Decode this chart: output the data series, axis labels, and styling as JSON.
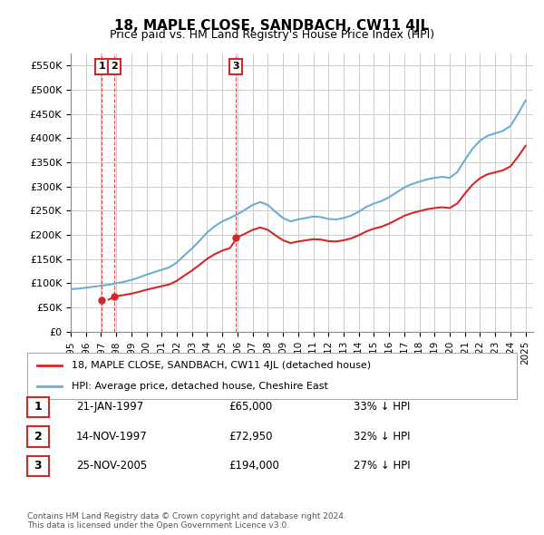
{
  "title": "18, MAPLE CLOSE, SANDBACH, CW11 4JL",
  "subtitle": "Price paid vs. HM Land Registry's House Price Index (HPI)",
  "hpi_color": "#6baed6",
  "price_color": "#d62728",
  "xlim": [
    1995,
    2025.5
  ],
  "ylim": [
    0,
    575000
  ],
  "yticks": [
    0,
    50000,
    100000,
    150000,
    200000,
    250000,
    300000,
    350000,
    400000,
    450000,
    500000,
    550000
  ],
  "ytick_labels": [
    "£0",
    "£50K",
    "£100K",
    "£150K",
    "£200K",
    "£250K",
    "£300K",
    "£350K",
    "£400K",
    "£450K",
    "£500K",
    "£550K"
  ],
  "xticks": [
    1995,
    1996,
    1997,
    1998,
    1999,
    2000,
    2001,
    2002,
    2003,
    2004,
    2005,
    2006,
    2007,
    2008,
    2009,
    2010,
    2011,
    2012,
    2013,
    2014,
    2015,
    2016,
    2017,
    2018,
    2019,
    2020,
    2021,
    2022,
    2023,
    2024,
    2025
  ],
  "sale_dates": [
    1997.06,
    1997.87,
    2005.9
  ],
  "sale_prices": [
    65000,
    72950,
    194000
  ],
  "sale_labels": [
    "1",
    "2",
    "3"
  ],
  "legend_label_red": "18, MAPLE CLOSE, SANDBACH, CW11 4JL (detached house)",
  "legend_label_blue": "HPI: Average price, detached house, Cheshire East",
  "table_rows": [
    [
      "1",
      "21-JAN-1997",
      "£65,000",
      "33% ↓ HPI"
    ],
    [
      "2",
      "14-NOV-1997",
      "£72,950",
      "32% ↓ HPI"
    ],
    [
      "3",
      "25-NOV-2005",
      "£194,000",
      "27% ↓ HPI"
    ]
  ],
  "footnote": "Contains HM Land Registry data © Crown copyright and database right 2024.\nThis data is licensed under the Open Government Licence v3.0.",
  "background_color": "#ffffff",
  "grid_color": "#cccccc"
}
